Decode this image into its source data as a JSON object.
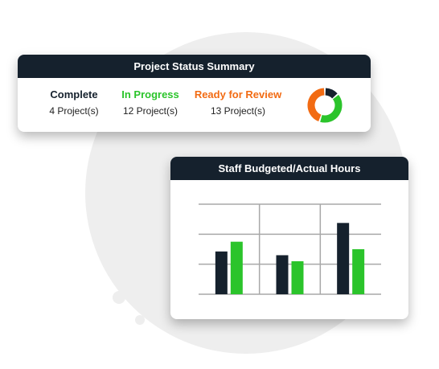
{
  "status_summary": {
    "title": "Project Status Summary",
    "columns": [
      {
        "label": "Complete",
        "count": "4 Project(s)",
        "color": "#15212d"
      },
      {
        "label": "In Progress",
        "count": "12 Project(s)",
        "color": "#2bc42b"
      },
      {
        "label": "Ready for Review",
        "count": "13 Project(s)",
        "color": "#f26b13"
      }
    ],
    "donut": {
      "segments": [
        {
          "name": "Complete",
          "value": 4,
          "color": "#15212d"
        },
        {
          "name": "In Progress",
          "value": 12,
          "color": "#2bc42b"
        },
        {
          "name": "Ready for Review",
          "value": 13,
          "color": "#f26b13"
        }
      ]
    }
  },
  "hours_card": {
    "title": "Staff Budgeted/Actual Hours"
  },
  "chart_data": {
    "type": "bar",
    "title": "Staff Budgeted/Actual Hours",
    "categories": [
      "",
      "",
      ""
    ],
    "series": [
      {
        "values": [
          57,
          52,
          95
        ],
        "color": "#15212d"
      },
      {
        "values": [
          70,
          44,
          60
        ],
        "color": "#2bc42b"
      }
    ],
    "ylim": [
      0,
      120
    ],
    "grid": true
  }
}
